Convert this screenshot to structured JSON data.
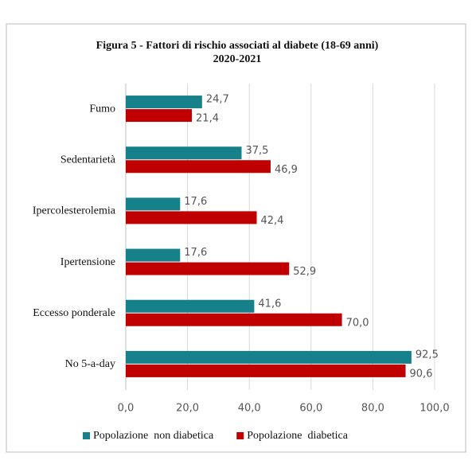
{
  "chart_data": {
    "type": "hbar",
    "title": [
      "Figura 5 - Fattori di rischio associati al diabete (18-69 anni)",
      "2020-2021"
    ],
    "categories": [
      "Fumo",
      "Sedentarietà",
      "Ipercolesterolemia",
      "Ipertensione",
      "Eccesso ponderale",
      "No 5-a-day"
    ],
    "series": [
      {
        "name": "Popolazione  non diabetica",
        "color": "#16808b",
        "values": [
          24.7,
          37.5,
          17.6,
          17.6,
          41.6,
          92.5
        ],
        "value_labels": [
          "24,7",
          "37,5",
          "17,6",
          "17,6",
          "41,6",
          "92,5"
        ]
      },
      {
        "name": "Popolazione  diabetica",
        "color": "#c00000",
        "values": [
          21.4,
          46.9,
          42.4,
          52.9,
          70.0,
          90.6
        ],
        "value_labels": [
          "21,4",
          "46,9",
          "42,4",
          "52,9",
          "70,0",
          "90,6"
        ]
      }
    ],
    "xlim": [
      0,
      100
    ],
    "xticks": [
      {
        "value": 0,
        "label": "0,0"
      },
      {
        "value": 20,
        "label": "20,0"
      },
      {
        "value": 40,
        "label": "40,0"
      },
      {
        "value": 60,
        "label": "60,0"
      },
      {
        "value": 80,
        "label": "80,0"
      },
      {
        "value": 100,
        "label": "100,0"
      }
    ],
    "grid": true,
    "legend": "bottom"
  }
}
